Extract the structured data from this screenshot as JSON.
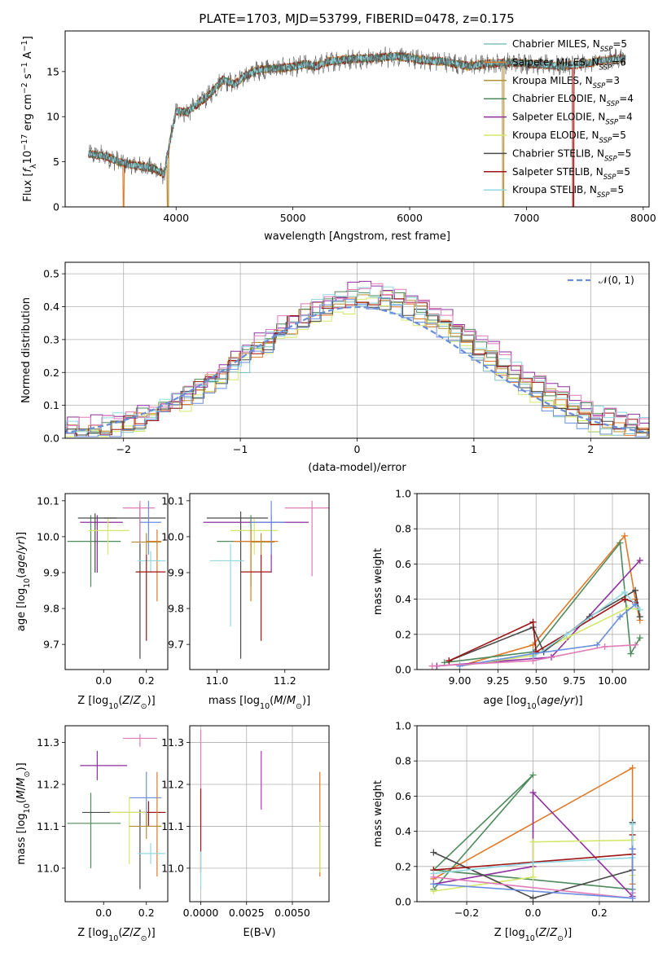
{
  "figure_title": "PLATE=1703, MJD=53799, FIBERID=0478, z=0.175",
  "series_colors": {
    "Chabrier MILES": "#7fc4c0",
    "Salpeter MILES": "#e07a28",
    "Kroupa MILES": "#b3903a",
    "Chabrier ELODIE": "#4e8a5c",
    "Salpeter ELODIE": "#8e2f9e",
    "Kroupa ELODIE": "#d3e86a",
    "Chabrier STELIB": "#4a4a4a",
    "Salpeter STELIB": "#9e1414",
    "Kroupa STELIB": "#92d8e2",
    "Magenta": "#c030c0",
    "Pink": "#e07ab8",
    "Blue": "#6a8ee0",
    "Gaussian": "#6a8ed8"
  },
  "chart_data": [
    {
      "id": "spectrum",
      "type": "line",
      "xlabel": "wavelength [Angstrom, rest frame]",
      "ylabel_parts": [
        "Flux [",
        "f",
        "λ",
        "10",
        "−17",
        " erg cm",
        "−2",
        " s",
        "−1",
        " A",
        "−1",
        "]"
      ],
      "xlim": [
        3050,
        8050
      ],
      "ylim": [
        0,
        19.5
      ],
      "xticks": [
        4000,
        5000,
        6000,
        7000,
        8000
      ],
      "yticks": [
        0,
        5,
        10,
        15
      ],
      "continuum": [
        [
          3250,
          5.9
        ],
        [
          3400,
          5.6
        ],
        [
          3550,
          4.8
        ],
        [
          3650,
          4.6
        ],
        [
          3800,
          4.3
        ],
        [
          3900,
          3.6
        ],
        [
          3950,
          7.5
        ],
        [
          4000,
          10.6
        ],
        [
          4100,
          10.5
        ],
        [
          4200,
          11.6
        ],
        [
          4300,
          12.6
        ],
        [
          4400,
          14.1
        ],
        [
          4500,
          13.6
        ],
        [
          4600,
          14.6
        ],
        [
          4700,
          15.2
        ],
        [
          4800,
          15.3
        ],
        [
          4900,
          15.4
        ],
        [
          5000,
          15.5
        ],
        [
          5100,
          15.8
        ],
        [
          5200,
          15.6
        ],
        [
          5300,
          16.1
        ],
        [
          5500,
          16.4
        ],
        [
          5700,
          16.5
        ],
        [
          5900,
          16.7
        ],
        [
          6100,
          16.3
        ],
        [
          6300,
          16.1
        ],
        [
          6500,
          15.6
        ],
        [
          6700,
          15.9
        ],
        [
          6900,
          16.0
        ],
        [
          7100,
          15.8
        ],
        [
          7300,
          15.6
        ],
        [
          7500,
          15.9
        ],
        [
          7700,
          16.3
        ],
        [
          7850,
          16.5
        ]
      ],
      "legend": [
        {
          "name": "Chabrier MILES",
          "n": "5"
        },
        {
          "name": "Salpeter MILES",
          "n": "6"
        },
        {
          "name": "Kroupa MILES",
          "n": "3"
        },
        {
          "name": "Chabrier ELODIE",
          "n": "4"
        },
        {
          "name": "Salpeter ELODIE",
          "n": "4"
        },
        {
          "name": "Kroupa ELODIE",
          "n": "5"
        },
        {
          "name": "Chabrier STELIB",
          "n": "5"
        },
        {
          "name": "Salpeter STELIB",
          "n": "5"
        },
        {
          "name": "Kroupa STELIB",
          "n": "5"
        }
      ],
      "legend_sub": "SSP",
      "legend_placement": "upper-right"
    },
    {
      "id": "residuals",
      "type": "histogram",
      "xlabel": "(data-model)/error",
      "ylabel": "Normed distribution",
      "xlim": [
        -2.5,
        2.5
      ],
      "ylim": [
        0,
        0.535
      ],
      "xticks": [
        -2,
        -1,
        0,
        1,
        2
      ],
      "yticks": [
        0.0,
        0.1,
        0.2,
        0.3,
        0.4,
        0.5
      ],
      "bin_width": 0.1,
      "reference": {
        "label": "𝒩(0, 1)",
        "mean": 0.0,
        "sigma": 1.0
      },
      "legend_placement": "upper-right",
      "grid": true
    },
    {
      "id": "age-vs-Z",
      "type": "errorbar",
      "xlabel": "Z [log10(Z/Z⊙)]",
      "ylabel": "age  [log10(age/yr)]",
      "xlim": [
        -0.18,
        0.3
      ],
      "ylim": [
        9.63,
        10.12
      ],
      "xticks": [
        0.0,
        0.2
      ],
      "yticks": [
        9.7,
        9.8,
        9.9,
        10.0,
        10.1
      ],
      "points": [
        {
          "c": "Chabrier ELODIE",
          "x": -0.06,
          "y": 9.987,
          "xlo": -0.17,
          "xhi": 0.08,
          "ylo": 9.86,
          "yhi": 10.06
        },
        {
          "c": "Salpeter ELODIE",
          "x": -0.03,
          "y": 10.04,
          "xlo": -0.11,
          "xhi": 0.09,
          "ylo": 9.9,
          "yhi": 10.06
        },
        {
          "c": "Chabrier STELIB",
          "x": -0.04,
          "y": 10.052,
          "xlo": -0.12,
          "xhi": 0.06,
          "ylo": 9.9,
          "yhi": 10.065
        },
        {
          "c": "Kroupa ELODIE",
          "x": 0.02,
          "y": 10.017,
          "xlo": -0.07,
          "xhi": 0.12,
          "ylo": 9.95,
          "yhi": 10.05
        },
        {
          "c": "Chabrier STELIB",
          "x": 0.17,
          "y": 10.052,
          "xlo": 0.0,
          "xhi": 0.29,
          "ylo": 9.66,
          "yhi": 10.09
        },
        {
          "c": "Pink",
          "x": 0.17,
          "y": 10.08,
          "xlo": 0.09,
          "xhi": 0.24,
          "ylo": 9.98,
          "yhi": 10.1
        },
        {
          "c": "Blue",
          "x": 0.21,
          "y": 10.04,
          "xlo": 0.17,
          "xhi": 0.27,
          "ylo": 9.95,
          "yhi": 10.1
        },
        {
          "c": "Salpeter MILES",
          "x": 0.25,
          "y": 9.987,
          "xlo": 0.2,
          "xhi": 0.27,
          "ylo": 9.82,
          "yhi": 10.02
        },
        {
          "c": "Kroupa MILES",
          "x": 0.2,
          "y": 9.985,
          "xlo": 0.13,
          "xhi": 0.27,
          "ylo": 9.95,
          "yhi": 10.01
        },
        {
          "c": "Kroupa STELIB",
          "x": 0.22,
          "y": 9.933,
          "xlo": 0.16,
          "xhi": 0.29,
          "ylo": 9.9,
          "yhi": 9.96
        },
        {
          "c": "Salpeter STELIB",
          "x": 0.2,
          "y": 9.902,
          "xlo": 0.15,
          "xhi": 0.29,
          "ylo": 9.71,
          "yhi": 9.95
        }
      ]
    },
    {
      "id": "age-vs-mass",
      "type": "errorbar",
      "xlabel": "mass [log10(M/M⊙)]",
      "ylabel": "",
      "xlim": [
        10.92,
        11.33
      ],
      "ylim": [
        9.63,
        10.12
      ],
      "xticks": [
        11.0,
        11.2
      ],
      "yticks": [
        9.7,
        9.8,
        9.9,
        10.0,
        10.1
      ],
      "points": [
        {
          "c": "Chabrier STELIB",
          "x": 11.07,
          "y": 10.052,
          "xlo": 10.97,
          "xhi": 11.15,
          "ylo": 9.66,
          "yhi": 10.07
        },
        {
          "c": "Salpeter ELODIE",
          "x": 11.16,
          "y": 10.04,
          "xlo": 10.96,
          "xhi": 11.27,
          "ylo": 9.9,
          "yhi": 10.06
        },
        {
          "c": "Pink",
          "x": 11.28,
          "y": 10.08,
          "xlo": 11.2,
          "xhi": 11.33,
          "ylo": 9.89,
          "yhi": 10.1
        },
        {
          "c": "Kroupa ELODIE",
          "x": 11.11,
          "y": 10.017,
          "xlo": 11.04,
          "xhi": 11.18,
          "ylo": 9.95,
          "yhi": 10.05
        },
        {
          "c": "Chabrier ELODIE",
          "x": 11.1,
          "y": 9.987,
          "xlo": 11.0,
          "xhi": 11.16,
          "ylo": 9.86,
          "yhi": 10.06
        },
        {
          "c": "Salpeter MILES",
          "x": 11.1,
          "y": 9.987,
          "xlo": 11.05,
          "xhi": 11.18,
          "ylo": 9.82,
          "yhi": 10.02
        },
        {
          "c": "Blue",
          "x": 11.16,
          "y": 10.04,
          "xlo": 11.1,
          "xhi": 11.2,
          "ylo": 9.95,
          "yhi": 10.1
        },
        {
          "c": "Kroupa STELIB",
          "x": 11.04,
          "y": 9.933,
          "xlo": 10.98,
          "xhi": 11.08,
          "ylo": 9.75,
          "yhi": 9.98
        },
        {
          "c": "Salpeter STELIB",
          "x": 11.13,
          "y": 9.902,
          "xlo": 11.07,
          "xhi": 11.16,
          "ylo": 9.71,
          "yhi": 9.95
        },
        {
          "c": "Kroupa MILES",
          "x": 11.13,
          "y": 9.985,
          "xlo": 11.1,
          "xhi": 11.17,
          "ylo": 9.95,
          "yhi": 10.01
        }
      ]
    },
    {
      "id": "weight-vs-age",
      "type": "line",
      "xlabel": "age  [log10(age/yr)]",
      "ylabel": "mass weight",
      "xlim": [
        8.72,
        10.24
      ],
      "ylim": [
        0,
        1
      ],
      "xticks": [
        9.0,
        9.25,
        9.5,
        9.75,
        10.0
      ],
      "yticks": [
        0.0,
        0.2,
        0.4,
        0.6,
        0.8,
        1.0
      ],
      "grid": true,
      "series": [
        {
          "c": "Salpeter MILES",
          "x": [
            9.0,
            9.48,
            10.08,
            10.15,
            10.18
          ],
          "y": [
            0.02,
            0.14,
            0.76,
            0.4,
            0.28
          ]
        },
        {
          "c": "Chabrier ELODIE",
          "x": [
            8.9,
            9.48,
            10.05,
            10.12,
            10.18
          ],
          "y": [
            0.04,
            0.1,
            0.72,
            0.09,
            0.18
          ]
        },
        {
          "c": "Salpeter ELODIE",
          "x": [
            8.85,
            9.6,
            10.18
          ],
          "y": [
            0.02,
            0.07,
            0.62
          ]
        },
        {
          "c": "Kroupa ELODIE",
          "x": [
            9.0,
            9.48,
            9.7,
            10.1,
            10.18
          ],
          "y": [
            0.02,
            0.08,
            0.18,
            0.35,
            0.34
          ]
        },
        {
          "c": "Chabrier STELIB",
          "x": [
            8.93,
            9.48,
            9.55,
            9.85,
            10.15,
            10.18
          ],
          "y": [
            0.05,
            0.24,
            0.1,
            0.3,
            0.45,
            0.3
          ]
        },
        {
          "c": "Salpeter STELIB",
          "x": [
            8.93,
            9.48,
            9.5,
            10.08,
            10.15
          ],
          "y": [
            0.05,
            0.27,
            0.1,
            0.4,
            0.38
          ]
        },
        {
          "c": "Kroupa STELIB",
          "x": [
            9.48,
            9.7,
            10.08,
            10.18
          ],
          "y": [
            0.07,
            0.2,
            0.44,
            0.34
          ]
        },
        {
          "c": "Blue",
          "x": [
            9.0,
            9.48,
            9.9,
            10.05,
            10.15
          ],
          "y": [
            0.02,
            0.09,
            0.14,
            0.3,
            0.37
          ]
        },
        {
          "c": "Pink",
          "x": [
            8.82,
            9.48,
            9.95,
            10.15
          ],
          "y": [
            0.02,
            0.05,
            0.13,
            0.14
          ]
        }
      ]
    },
    {
      "id": "mass-vs-Z",
      "type": "errorbar",
      "xlabel": "Z [log10(Z/Z⊙)]",
      "ylabel": "mass [log10(M/M⊙)]",
      "xlim": [
        -0.18,
        0.3
      ],
      "ylim": [
        10.92,
        11.34
      ],
      "xticks": [
        0.0,
        0.2
      ],
      "yticks": [
        11.0,
        11.1,
        11.2,
        11.3
      ],
      "points": [
        {
          "c": "Salpeter ELODIE",
          "x": -0.03,
          "y": 11.245,
          "xlo": -0.11,
          "xhi": 0.11,
          "ylo": 11.21,
          "yhi": 11.28
        },
        {
          "c": "Pink",
          "x": 0.17,
          "y": 11.31,
          "xlo": 0.09,
          "xhi": 0.25,
          "ylo": 11.29,
          "yhi": 11.32
        },
        {
          "c": "Chabrier ELODIE",
          "x": -0.06,
          "y": 11.107,
          "xlo": -0.17,
          "xhi": 0.08,
          "ylo": 11.0,
          "yhi": 11.18
        },
        {
          "c": "Chabrier STELIB",
          "x": 0.17,
          "y": 11.133,
          "xlo": -0.1,
          "xhi": 0.29,
          "ylo": 10.95,
          "yhi": 11.14
        },
        {
          "c": "Salpeter STELIB",
          "x": 0.21,
          "y": 11.133,
          "xlo": 0.17,
          "xhi": 0.29,
          "ylo": 11.1,
          "yhi": 11.16
        },
        {
          "c": "Blue",
          "x": 0.2,
          "y": 11.168,
          "xlo": 0.12,
          "xhi": 0.27,
          "ylo": 11.1,
          "yhi": 11.23
        },
        {
          "c": "Kroupa ELODIE",
          "x": 0.12,
          "y": 11.133,
          "xlo": 0.03,
          "xhi": 0.2,
          "ylo": 11.01,
          "yhi": 11.17
        },
        {
          "c": "Salpeter MILES",
          "x": 0.25,
          "y": 11.1,
          "xlo": 0.2,
          "xhi": 0.27,
          "ylo": 10.98,
          "yhi": 11.23
        },
        {
          "c": "Kroupa MILES",
          "x": 0.2,
          "y": 11.1,
          "xlo": 0.12,
          "xhi": 0.27,
          "ylo": 11.07,
          "yhi": 11.13
        },
        {
          "c": "Kroupa STELIB",
          "x": 0.22,
          "y": 11.035,
          "xlo": 0.16,
          "xhi": 0.29,
          "ylo": 11.01,
          "yhi": 11.06
        }
      ]
    },
    {
      "id": "mass-vs-ebv",
      "type": "errorbar",
      "xlabel": "E(B-V)",
      "ylabel": "",
      "xlim": [
        -0.0006,
        0.007
      ],
      "ylim": [
        10.92,
        11.34
      ],
      "xticks": [
        0.0,
        0.0025,
        0.005
      ],
      "xtick_labels": [
        "0.0000",
        "0.0025",
        "0.0050"
      ],
      "yticks": [
        11.0,
        11.1,
        11.2,
        11.3
      ],
      "grid": true,
      "points": [
        {
          "c": "Pink",
          "x": 0.0,
          "y": 11.2,
          "xlo": 0.0,
          "xhi": 0.0,
          "ylo": 11.1,
          "yhi": 11.33
        },
        {
          "c": "Salpeter STELIB",
          "x": 0.0,
          "y": 11.09,
          "xlo": 0.0,
          "xhi": 0.0,
          "ylo": 10.99,
          "yhi": 11.19
        },
        {
          "c": "Kroupa STELIB",
          "x": 0.0,
          "y": 11.0,
          "xlo": 0.0,
          "xhi": 0.0,
          "ylo": 10.95,
          "yhi": 11.04
        },
        {
          "c": "Magenta",
          "x": 0.0033,
          "y": 11.21,
          "xlo": 0.0033,
          "xhi": 0.0033,
          "ylo": 11.14,
          "yhi": 11.28
        },
        {
          "c": "Salpeter MILES",
          "x": 0.0065,
          "y": 11.1,
          "xlo": 0.0065,
          "xhi": 0.0065,
          "ylo": 10.98,
          "yhi": 11.23
        },
        {
          "c": "Kroupa ELODIE",
          "x": 0.0065,
          "y": 11.05,
          "xlo": 0.0065,
          "xhi": 0.0065,
          "ylo": 10.99,
          "yhi": 11.11
        }
      ]
    },
    {
      "id": "weight-vs-Z",
      "type": "line",
      "xlabel": "Z [log10(Z/Z⊙)]",
      "ylabel": "mass weight",
      "xlim": [
        -0.35,
        0.35
      ],
      "ylim": [
        0,
        1
      ],
      "xticks": [
        -0.2,
        0.0,
        0.2
      ],
      "yticks": [
        0.0,
        0.2,
        0.4,
        0.6,
        0.8,
        1.0
      ],
      "grid": true,
      "series": [
        {
          "c": "Salpeter MILES",
          "x": [
            -0.3,
            0.3,
            0.3
          ],
          "y": [
            0.13,
            0.76,
            0.1
          ]
        },
        {
          "c": "Chabrier ELODIE",
          "x": [
            -0.3,
            0.0,
            -0.3,
            0.3
          ],
          "y": [
            0.07,
            0.72,
            0.18,
            0.07
          ]
        },
        {
          "c": "Salpeter ELODIE",
          "x": [
            -0.3,
            0.0,
            0.0,
            0.3
          ],
          "y": [
            0.1,
            0.2,
            0.62,
            0.03
          ]
        },
        {
          "c": "Kroupa ELODIE",
          "x": [
            -0.3,
            0.0,
            0.0,
            0.3,
            0.3
          ],
          "y": [
            0.06,
            0.14,
            0.34,
            0.35,
            0.15
          ]
        },
        {
          "c": "Chabrier STELIB",
          "x": [
            -0.3,
            0.0,
            0.3,
            0.3,
            0.3
          ],
          "y": [
            0.28,
            0.02,
            0.18,
            0.45,
            0.3
          ]
        },
        {
          "c": "Salpeter STELIB",
          "x": [
            -0.3,
            0.3,
            0.3
          ],
          "y": [
            0.18,
            0.27,
            0.38
          ]
        },
        {
          "c": "Kroupa STELIB",
          "x": [
            -0.3,
            0.0,
            0.3,
            0.3
          ],
          "y": [
            0.16,
            0.22,
            0.25,
            0.44
          ]
        },
        {
          "c": "Pink",
          "x": [
            -0.3,
            0.3,
            0.3
          ],
          "y": [
            0.14,
            0.02,
            0.05
          ]
        },
        {
          "c": "Blue",
          "x": [
            -0.3,
            0.3,
            0.3
          ],
          "y": [
            0.1,
            0.02,
            0.3
          ]
        }
      ]
    }
  ]
}
